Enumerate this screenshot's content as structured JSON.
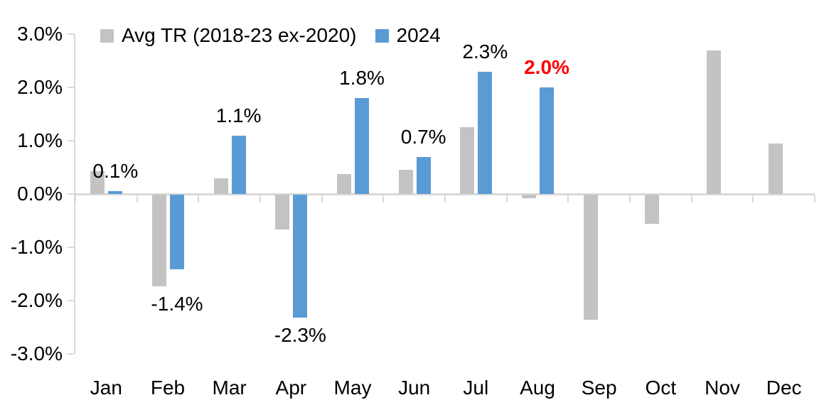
{
  "chart_data": {
    "type": "bar",
    "title": "",
    "categories": [
      "Jan",
      "Feb",
      "Mar",
      "Apr",
      "May",
      "Jun",
      "Jul",
      "Aug",
      "Sep",
      "Oct",
      "Nov",
      "Dec"
    ],
    "series": [
      {
        "name": "Avg TR (2018-23 ex-2020)",
        "color": "#C3C3C3",
        "values": [
          0.43,
          -1.72,
          0.3,
          -0.65,
          0.38,
          0.45,
          1.25,
          -0.07,
          -2.35,
          -0.55,
          2.7,
          0.95
        ]
      },
      {
        "name": "2024",
        "color": "#5B9BD5",
        "values": [
          0.05,
          -1.4,
          1.1,
          -2.3,
          1.8,
          0.7,
          2.3,
          2.0,
          null,
          null,
          null,
          null
        ]
      }
    ],
    "data_labels": [
      {
        "category": "Jan",
        "text": "0.1%",
        "color": "#000000",
        "bold": false
      },
      {
        "category": "Feb",
        "text": "-1.4%",
        "color": "#000000",
        "bold": false
      },
      {
        "category": "Mar",
        "text": "1.1%",
        "color": "#000000",
        "bold": false
      },
      {
        "category": "Apr",
        "text": "-2.3%",
        "color": "#000000",
        "bold": false
      },
      {
        "category": "May",
        "text": "1.8%",
        "color": "#000000",
        "bold": false
      },
      {
        "category": "Jun",
        "text": "0.7%",
        "color": "#000000",
        "bold": false
      },
      {
        "category": "Jul",
        "text": "2.3%",
        "color": "#000000",
        "bold": false
      },
      {
        "category": "Aug",
        "text": "2.0%",
        "color": "#FF0000",
        "bold": true
      }
    ],
    "yticks": [
      {
        "label": "3.0%",
        "value": 3
      },
      {
        "label": "2.0%",
        "value": 2
      },
      {
        "label": "1.0%",
        "value": 1
      },
      {
        "label": "0.0%",
        "value": 0
      },
      {
        "label": "-1.0%",
        "value": -1
      },
      {
        "label": "-2.0%",
        "value": -2
      },
      {
        "label": "-3.0%",
        "value": -3
      }
    ],
    "ylim": [
      -3,
      3
    ],
    "legend_position": "top",
    "grid": false,
    "axis_color": "#D9D9D9",
    "label_color": "#000000",
    "highlight_color": "#FF0000"
  }
}
